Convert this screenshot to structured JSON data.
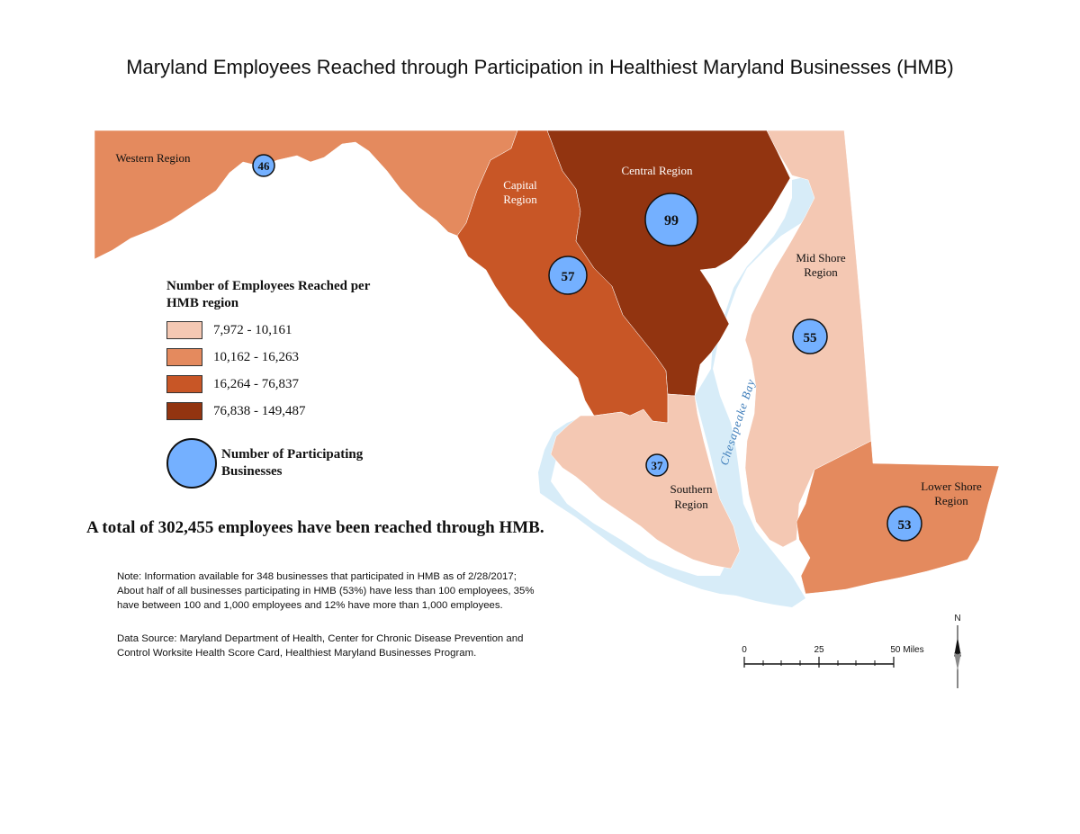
{
  "title": "Maryland Employees Reached through Participation in Healthiest Maryland Businesses (HMB)",
  "colors": {
    "class1": "#f4c8b3",
    "class2": "#e48a5e",
    "class3": "#c85626",
    "class4": "#923410",
    "water": "#d7ecf8",
    "bubble": "#74b0ff"
  },
  "regions": [
    {
      "name": "Western",
      "label_line1": "Western Region",
      "label_line2": "",
      "class": 2,
      "businesses": "46"
    },
    {
      "name": "Capital",
      "label_line1": "Capital",
      "label_line2": "Region",
      "class": 3,
      "businesses": "57"
    },
    {
      "name": "Central",
      "label_line1": "Central Region",
      "label_line2": "",
      "class": 4,
      "businesses": "99"
    },
    {
      "name": "Mid Shore",
      "label_line1": "Mid Shore",
      "label_line2": "Region",
      "class": 1,
      "businesses": "55"
    },
    {
      "name": "Southern",
      "label_line1": "Southern",
      "label_line2": "Region",
      "class": 1,
      "businesses": "37"
    },
    {
      "name": "Lower Shore",
      "label_line1": "Lower Shore",
      "label_line2": "Region",
      "class": 2,
      "businesses": "53"
    }
  ],
  "water_label": "Chesapeake Bay",
  "legend": {
    "title": "Number of Employees Reached per HMB region",
    "classes": [
      "7,972 - 10,161",
      "10,162 - 16,263",
      "16,264 - 76,837",
      "76,838 - 149,487"
    ],
    "bubble_label": "Number of Participating Businesses"
  },
  "total_text": "A total of 302,455 employees have been reached through HMB.",
  "note_lines": [
    "Note: Information available for 348 businesses that participated in HMB as of 2/28/2017;",
    "About half of all businesses participating in HMB (53%) have less than 100 employees, 35%",
    "have between 100 and 1,000 employees and 12% have more than 1,000 employees."
  ],
  "source_lines": [
    "Data Source: Maryland Department of Health, Center for Chronic Disease Prevention and",
    "Control Worksite Health Score Card, Healthiest Maryland Businesses Program."
  ],
  "scale_bar": {
    "ticks": [
      "0",
      "25",
      "50 Miles"
    ]
  },
  "north_label": "N"
}
